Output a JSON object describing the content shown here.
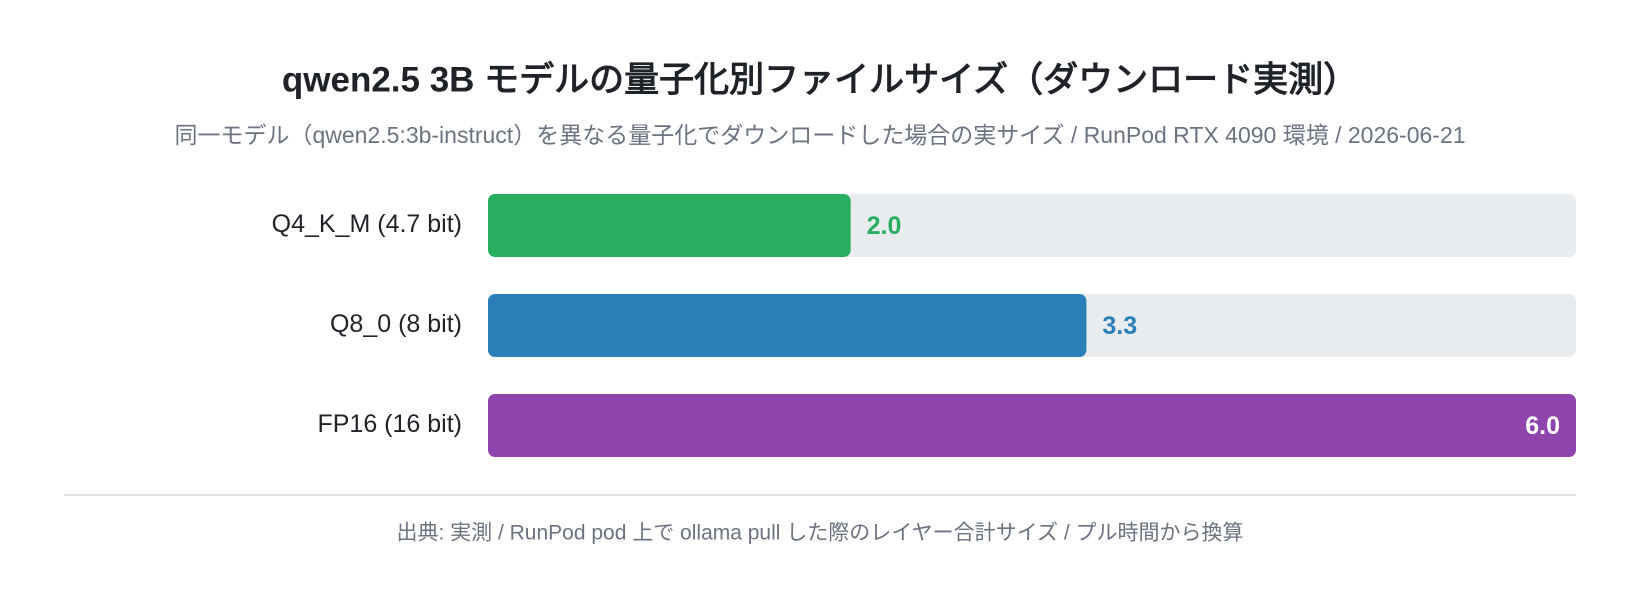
{
  "chart_data": {
    "type": "hbar",
    "title": "qwen2.5 3B モデルの量子化別ファイルサイズ（ダウンロード実測）",
    "subtitle": "同一モデル（qwen2.5:3b-instruct）を異なる量子化でダウンロードした場合の実サイズ / RunPod RTX 4090 環境 / 2026-06-21",
    "categories": [
      "Q4_K_M (4.7 bit)",
      "Q8_0 (8 bit)",
      "FP16 (16 bit)"
    ],
    "series": [
      {
        "colors": [
          "#27ae60",
          "#2980b9",
          "#8e44ad"
        ],
        "values": [
          2.0,
          3.3,
          6.0
        ],
        "value_labels": [
          "2.0",
          "3.3",
          "6.0"
        ]
      }
    ],
    "xlim": [
      0,
      6
    ],
    "source": "出典: 実測 / RunPod pod 上で ollama pull した際のレイヤー合計サイズ / プル時間から換算"
  }
}
